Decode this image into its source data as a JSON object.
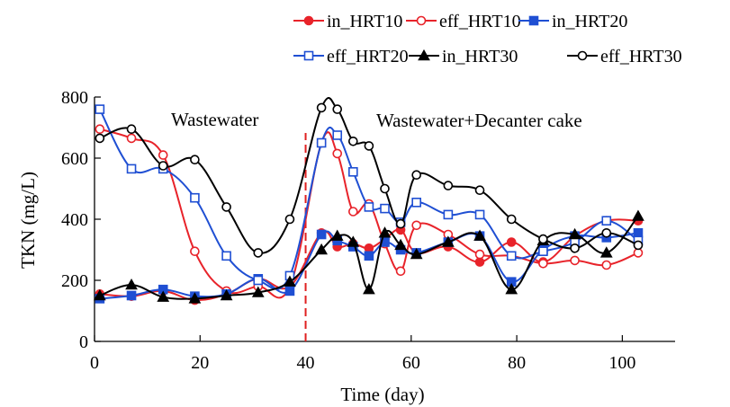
{
  "chart_data": {
    "type": "line",
    "xlabel": "Time (day)",
    "ylabel": "TKN (mg/L)",
    "xlim": [
      0,
      110
    ],
    "ylim": [
      0,
      800
    ],
    "xticks": [
      "0",
      "20",
      "40",
      "60",
      "80",
      "100"
    ],
    "yticks": [
      "0",
      "200",
      "400",
      "600",
      "800"
    ],
    "grid": false,
    "legend_position": "top-right",
    "annotations": [
      {
        "text": "Wastewater"
      },
      {
        "text": "Wastewater+Decanter cake"
      }
    ],
    "divider_x": 40,
    "series": [
      {
        "name": "in_HRT10",
        "color": "#e8232a",
        "marker": "circle",
        "filled": true,
        "x": [
          1,
          7,
          13,
          19,
          25,
          31,
          37,
          43,
          46,
          49,
          52,
          55,
          58,
          61,
          67,
          73,
          79,
          85,
          91,
          97,
          103
        ],
        "y": [
          155,
          148,
          165,
          135,
          155,
          205,
          180,
          355,
          310,
          320,
          305,
          335,
          365,
          290,
          310,
          260,
          325,
          260,
          345,
          395,
          395
        ]
      },
      {
        "name": "eff_HRT10",
        "color": "#e8232a",
        "marker": "circle",
        "filled": false,
        "x": [
          1,
          7,
          13,
          19,
          25,
          31,
          37,
          43,
          46,
          49,
          52,
          55,
          58,
          61,
          67,
          73,
          79,
          85,
          91,
          97,
          103
        ],
        "y": [
          695,
          665,
          610,
          295,
          165,
          180,
          180,
          650,
          615,
          425,
          450,
          320,
          230,
          380,
          350,
          285,
          280,
          255,
          265,
          250,
          290
        ]
      },
      {
        "name": "in_HRT20",
        "color": "#1f4fd3",
        "marker": "square",
        "filled": true,
        "x": [
          1,
          7,
          13,
          19,
          25,
          31,
          37,
          43,
          46,
          49,
          52,
          55,
          58,
          61,
          67,
          73,
          79,
          85,
          91,
          97,
          103
        ],
        "y": [
          140,
          150,
          170,
          148,
          155,
          205,
          165,
          350,
          330,
          310,
          280,
          325,
          300,
          290,
          325,
          345,
          195,
          300,
          345,
          340,
          355
        ]
      },
      {
        "name": "eff_HRT20",
        "color": "#1f4fd3",
        "marker": "square",
        "filled": false,
        "x": [
          1,
          7,
          13,
          19,
          25,
          31,
          37,
          43,
          46,
          49,
          52,
          55,
          58,
          61,
          67,
          73,
          79,
          85,
          91,
          97,
          103
        ],
        "y": [
          760,
          565,
          565,
          470,
          280,
          200,
          215,
          650,
          675,
          555,
          440,
          435,
          390,
          455,
          415,
          415,
          280,
          295,
          325,
          395,
          330
        ]
      },
      {
        "name": "in_HRT30",
        "color": "#000000",
        "marker": "triangle",
        "filled": true,
        "x": [
          1,
          7,
          13,
          19,
          25,
          31,
          37,
          43,
          46,
          49,
          52,
          55,
          58,
          61,
          67,
          73,
          79,
          85,
          91,
          97,
          103
        ],
        "y": [
          150,
          185,
          145,
          140,
          150,
          160,
          195,
          300,
          345,
          325,
          170,
          355,
          315,
          285,
          325,
          345,
          170,
          330,
          350,
          290,
          410
        ]
      },
      {
        "name": "eff_HRT30",
        "color": "#000000",
        "marker": "circle",
        "filled": false,
        "x": [
          1,
          7,
          13,
          19,
          25,
          31,
          37,
          43,
          46,
          49,
          52,
          55,
          58,
          61,
          67,
          73,
          79,
          85,
          91,
          97,
          103
        ],
        "y": [
          665,
          695,
          575,
          595,
          440,
          290,
          400,
          765,
          760,
          655,
          640,
          500,
          385,
          545,
          510,
          495,
          400,
          335,
          305,
          355,
          315
        ]
      }
    ]
  }
}
